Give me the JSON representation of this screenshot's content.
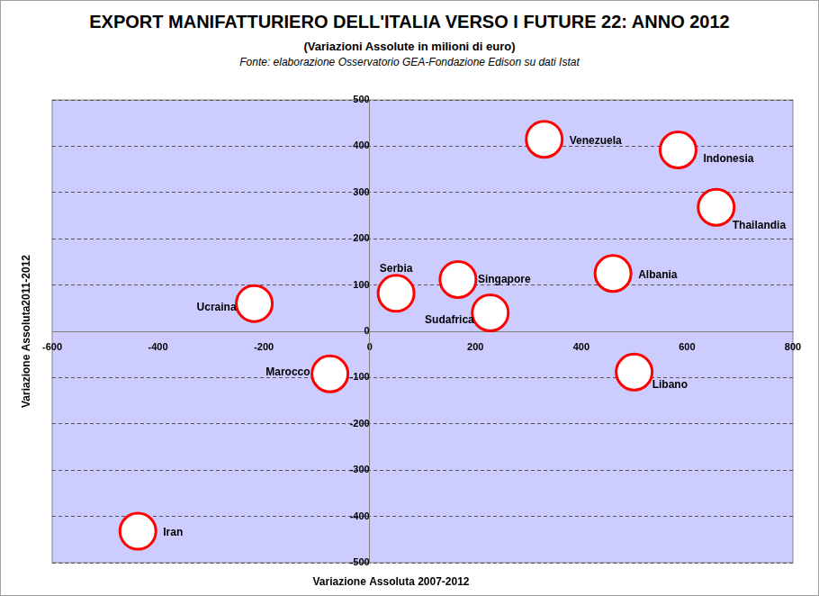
{
  "chart_data": {
    "type": "scatter",
    "title": "EXPORT MANIFATTURIERO DELL'ITALIA VERSO I FUTURE 22: ANNO 2012",
    "subtitle": "(Variazioni Assolute in milioni di euro)",
    "source": "Fonte: elaborazione Osservatorio GEA-Fondazione Edison su dati Istat",
    "x_label": "Variazione Assoluta 2007-2012",
    "y_label": "Variazione Assoluta2011-2012",
    "point_labels": [
      "Venezuela",
      "Indonesia",
      "Thailandia",
      "Albania",
      "Singapore",
      "Serbia",
      "Sudafrica",
      "Ucraina",
      "Marocco",
      "Libano",
      "Iran"
    ],
    "x": [
      330,
      583,
      655,
      460,
      167,
      50,
      228,
      -218,
      -75,
      500,
      -438
    ],
    "values": [
      415,
      392,
      268,
      125,
      112,
      82,
      40,
      60,
      -92,
      -88,
      -432
    ],
    "color": "#ff0000",
    "marker": "circle",
    "xlim": [
      -600,
      800
    ],
    "xticks": [
      -600,
      -400,
      -200,
      0,
      200,
      400,
      600,
      800
    ],
    "ylim": [
      -500,
      500
    ],
    "yticks": [
      -500,
      -400,
      -300,
      -200,
      -100,
      0,
      100,
      200,
      300,
      400,
      500
    ],
    "grid": true
  }
}
